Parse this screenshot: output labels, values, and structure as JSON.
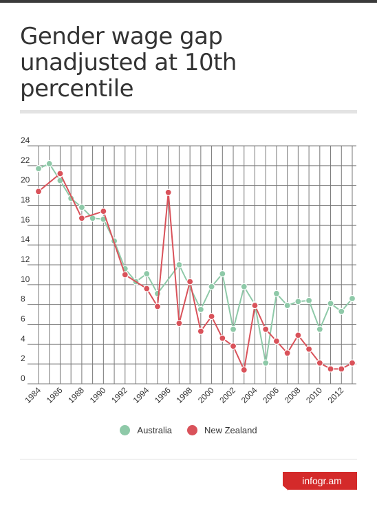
{
  "title": "Gender wage gap unadjusted at 10th percentile",
  "brand": "infogr.am",
  "colors": {
    "australia": "#8ec9a8",
    "new_zealand": "#d9525a",
    "brand": "#d42a2a",
    "grid": "#777777",
    "text": "#333333"
  },
  "chart_data": {
    "type": "line",
    "title": "Gender wage gap unadjusted at 10th percentile",
    "xlabel": "",
    "ylabel": "",
    "x": [
      1984,
      1985,
      1986,
      1987,
      1988,
      1989,
      1990,
      1991,
      1992,
      1993,
      1994,
      1995,
      1996,
      1997,
      1998,
      1999,
      2000,
      2001,
      2002,
      2003,
      2004,
      2005,
      2006,
      2007,
      2008,
      2009,
      2010,
      2011,
      2012,
      2013
    ],
    "x_tick_labels": [
      "1984",
      "1986",
      "1988",
      "1990",
      "1992",
      "1994",
      "1996",
      "1998",
      "2000",
      "2002",
      "2004",
      "2006",
      "2008",
      "2010",
      "2012"
    ],
    "y_tick_labels": [
      "0",
      "2",
      "4",
      "6",
      "8",
      "10",
      "12",
      "14",
      "16",
      "18",
      "20",
      "22",
      "24"
    ],
    "ylim": [
      0,
      24
    ],
    "grid": true,
    "legend_position": "bottom",
    "series": [
      {
        "name": "Australia",
        "color": "#8ec9a8",
        "values": [
          21.7,
          22.2,
          20.5,
          18.7,
          17.8,
          16.7,
          16.6,
          14.4,
          11.6,
          10.3,
          11.1,
          9.1,
          null,
          12.0,
          null,
          7.5,
          9.8,
          11.1,
          5.5,
          9.8,
          8.0,
          2.1,
          9.1,
          7.9,
          8.3,
          8.4,
          5.5,
          8.1,
          7.3,
          8.6
        ]
      },
      {
        "name": "New Zealand",
        "color": "#d9525a",
        "values": [
          19.4,
          null,
          21.2,
          null,
          16.7,
          null,
          17.4,
          null,
          11.0,
          null,
          9.6,
          7.8,
          19.3,
          6.1,
          10.3,
          5.3,
          6.8,
          4.6,
          3.8,
          1.4,
          7.9,
          5.5,
          4.3,
          3.1,
          4.9,
          3.5,
          2.1,
          1.5,
          1.5,
          2.1
        ]
      }
    ]
  }
}
